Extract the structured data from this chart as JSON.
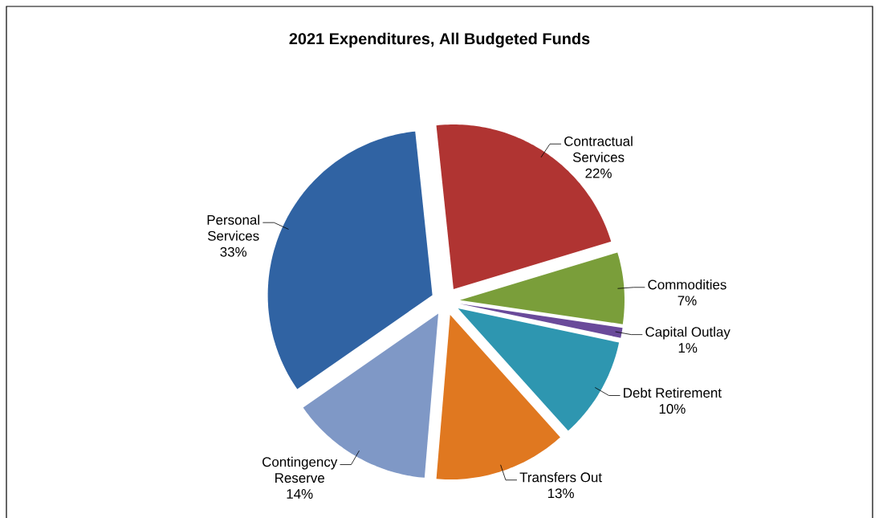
{
  "chart_data": {
    "type": "pie",
    "title": "2021 Expenditures, All Budgeted Funds",
    "categories": [
      "Contractual Services",
      "Commodities",
      "Capital Outlay",
      "Debt Retirement",
      "Transfers Out",
      "Contingency Reserve",
      "Personal Services"
    ],
    "values": [
      22,
      7,
      1,
      10,
      13,
      14,
      33
    ],
    "value_labels": [
      "22%",
      "7%",
      "1%",
      "10%",
      "13%",
      "14%",
      "33%"
    ],
    "colors": [
      "#b03432",
      "#7a9e3a",
      "#6a4a9a",
      "#2e96b0",
      "#e07820",
      "#7f98c6",
      "#3063a3"
    ]
  }
}
